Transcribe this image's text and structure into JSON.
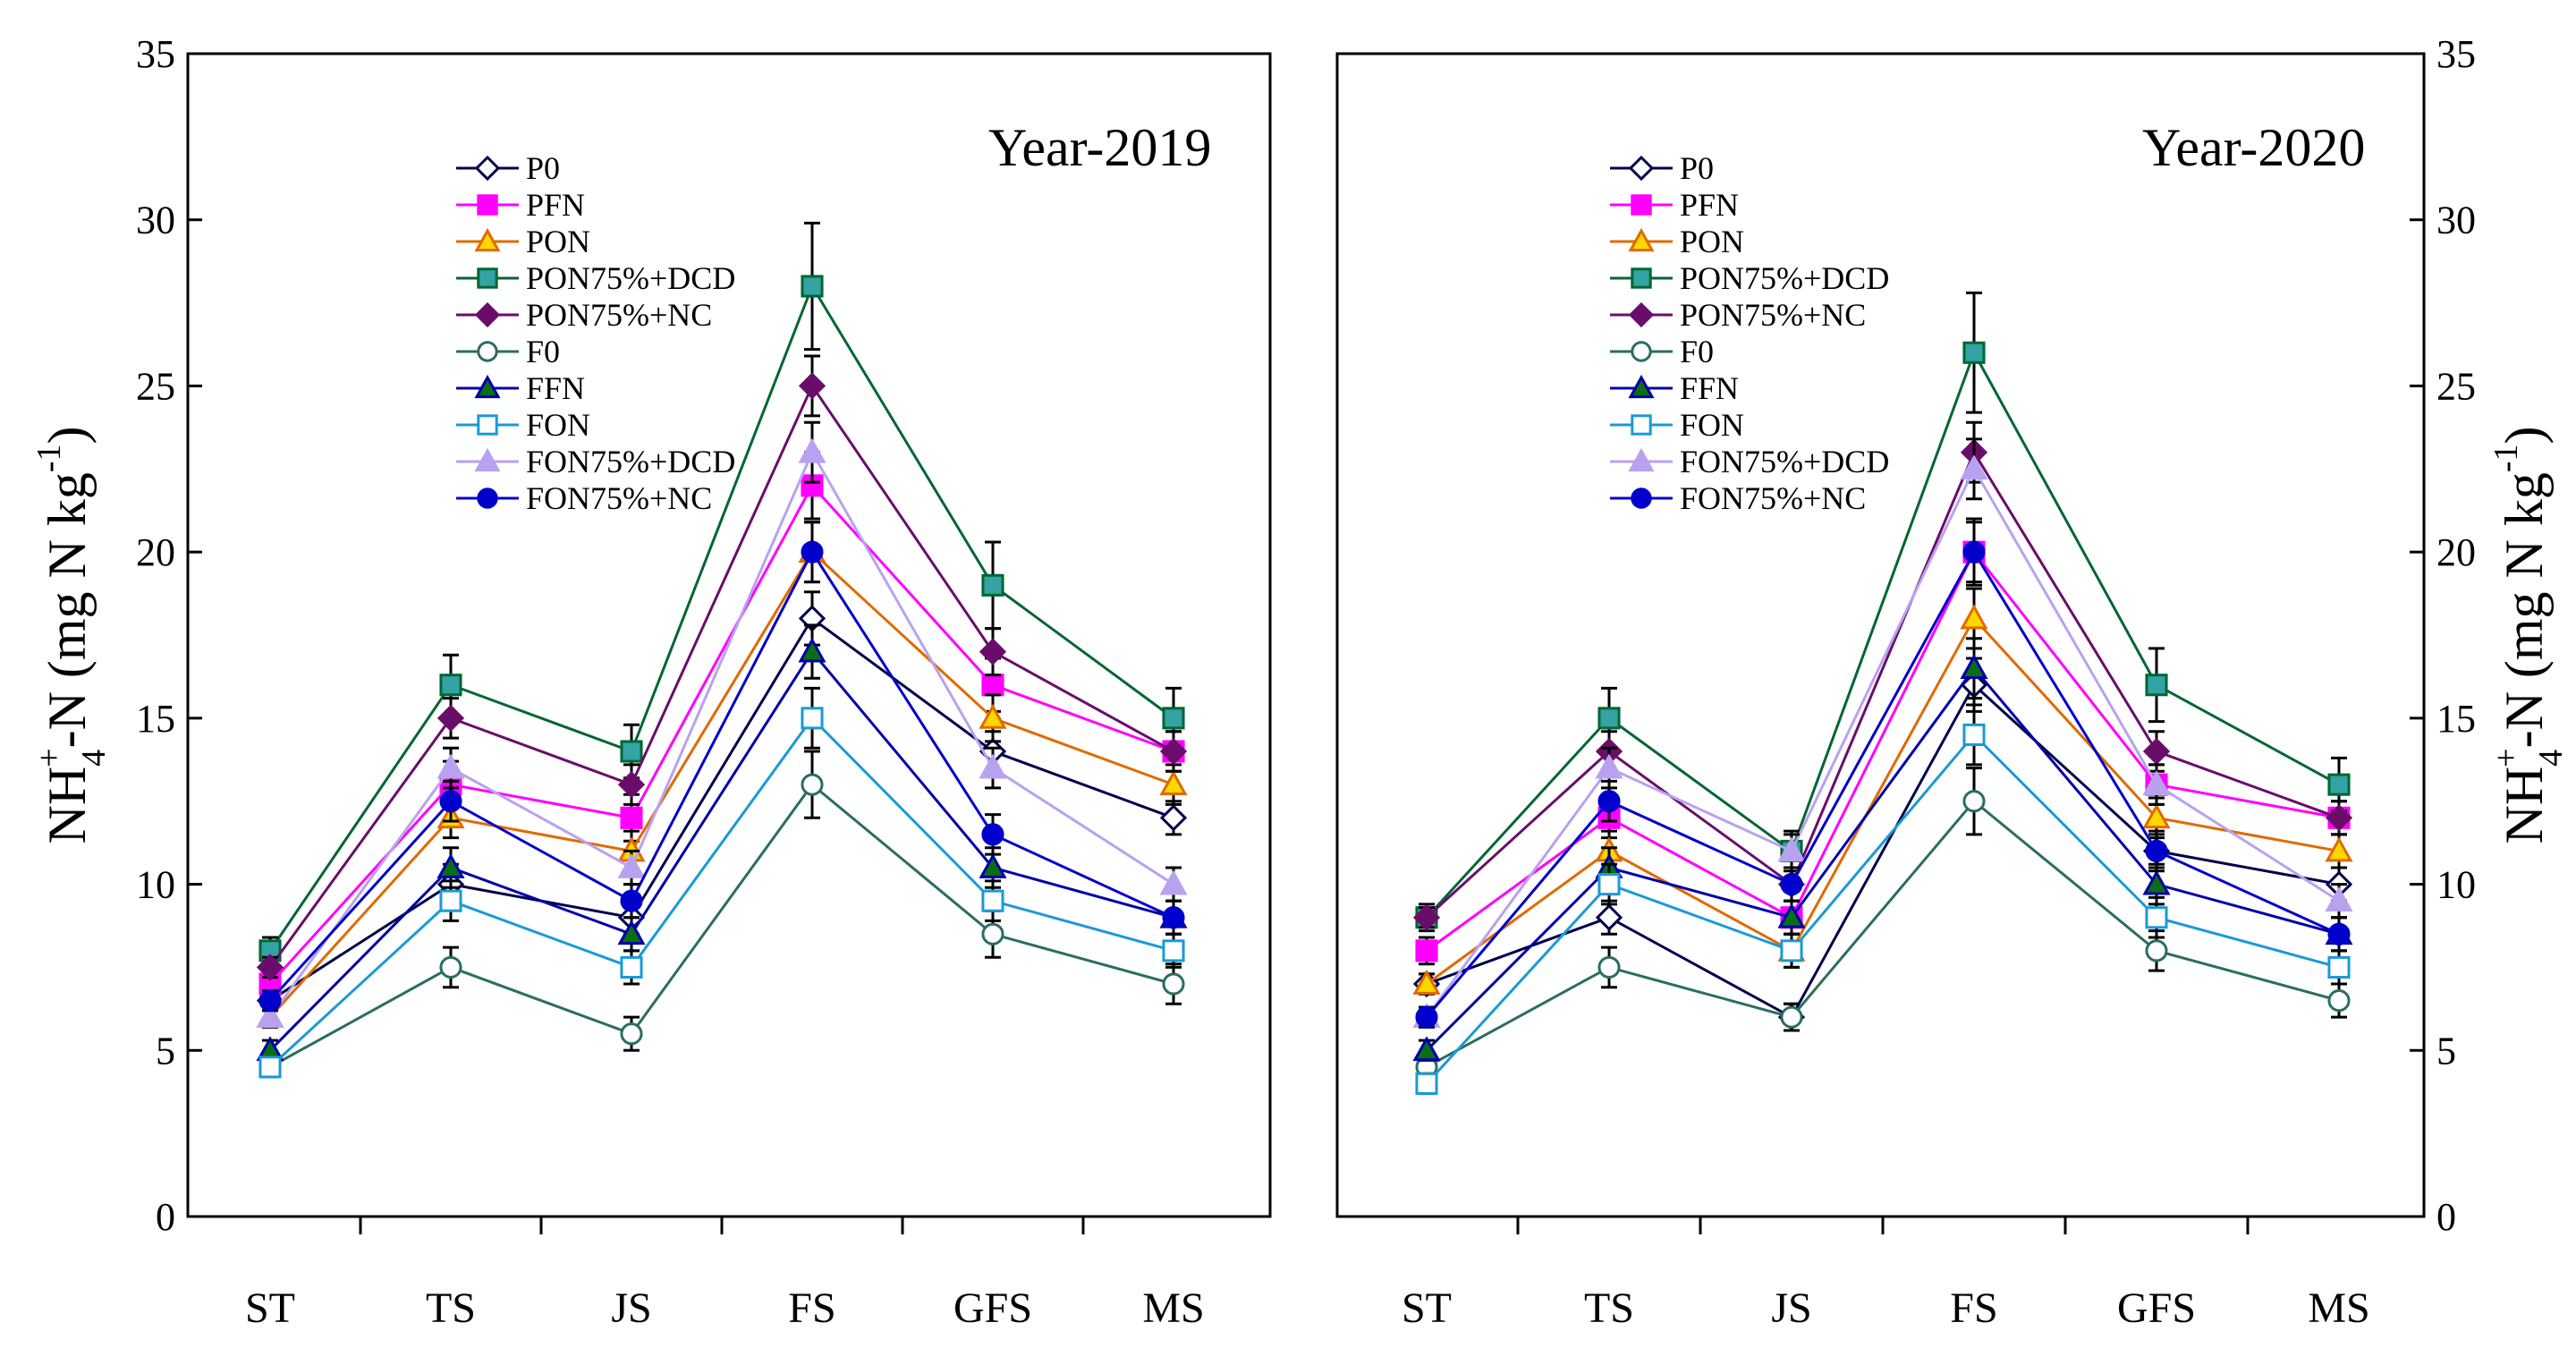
{
  "figure": {
    "ylabel_left": {
      "main": "NH",
      "sub": "4",
      "sup1": "+",
      "mid": "-N (mg N kg",
      "sup2": "-1",
      "end": ")"
    },
    "ylabel_right": {
      "main": "NH",
      "sub": "4",
      "sup1": "+",
      "mid": "-N (mg N kg",
      "sup2": "-1",
      "end": ")"
    }
  },
  "series_styles": [
    {
      "name": "P0",
      "color": "#00004d",
      "marker": "diamond",
      "fill": "#ffffff"
    },
    {
      "name": "PFN",
      "color": "#ff00ff",
      "marker": "square",
      "fill": "#ff00ff"
    },
    {
      "name": "PON",
      "color": "#e06a00",
      "marker": "triangle",
      "fill": "#ffd700"
    },
    {
      "name": "PON75%+DCD",
      "color": "#006633",
      "marker": "square",
      "fill": "#33a3a3"
    },
    {
      "name": "PON75%+NC",
      "color": "#6a0d6a",
      "marker": "diamond",
      "fill": "#6a0d6a"
    },
    {
      "name": "F0",
      "color": "#2a6e5e",
      "marker": "circle-open",
      "fill": "#ffffff"
    },
    {
      "name": "FFN",
      "color": "#0000aa",
      "marker": "triangle",
      "fill": "#0a6e14"
    },
    {
      "name": "FON",
      "color": "#1a9ad6",
      "marker": "square-open",
      "fill": "#ffffff"
    },
    {
      "name": "FON75%+DCD",
      "color": "#b8a2f0",
      "marker": "triangle",
      "fill": "#b8a2f0"
    },
    {
      "name": "FON75%+NC",
      "color": "#0000cc",
      "marker": "circle",
      "fill": "#0000cc"
    }
  ],
  "chart_data": [
    {
      "type": "line",
      "title": "Year-2019",
      "xlabel": "",
      "ylabel": "NH4+-N (mg N kg-1)",
      "categories": [
        "ST",
        "TS",
        "JS",
        "FS",
        "GFS",
        "MS"
      ],
      "ylim": [
        0,
        35
      ],
      "yticks": [
        "0",
        "5",
        "10",
        "15",
        "20",
        "25",
        "30",
        "35"
      ],
      "y_axis_side": "left",
      "legend_position": "top-left",
      "series": [
        {
          "name": "P0",
          "values": [
            6.5,
            10.0,
            9.0,
            18.0,
            14.0,
            12.0
          ],
          "errors": [
            0.3,
            0.6,
            0.5,
            0.8,
            0.6,
            0.5
          ]
        },
        {
          "name": "PFN",
          "values": [
            7.0,
            13.0,
            12.0,
            22.0,
            16.0,
            14.0
          ],
          "errors": [
            0.3,
            0.7,
            0.7,
            1.0,
            0.8,
            0.6
          ]
        },
        {
          "name": "PON",
          "values": [
            6.0,
            12.0,
            11.0,
            20.0,
            15.0,
            13.0
          ],
          "errors": [
            0.3,
            0.6,
            0.6,
            0.9,
            0.7,
            0.6
          ]
        },
        {
          "name": "PON75%+DCD",
          "values": [
            8.0,
            16.0,
            14.0,
            28.0,
            19.0,
            15.0
          ],
          "errors": [
            0.4,
            0.9,
            0.8,
            1.9,
            1.3,
            0.9
          ]
        },
        {
          "name": "PON75%+NC",
          "values": [
            7.5,
            15.0,
            13.0,
            25.0,
            17.0,
            14.0
          ],
          "errors": [
            0.3,
            0.6,
            0.6,
            0.9,
            0.7,
            0.6
          ]
        },
        {
          "name": "F0",
          "values": [
            4.5,
            7.5,
            5.5,
            13.0,
            8.5,
            7.0
          ],
          "errors": [
            0.3,
            0.6,
            0.5,
            1.0,
            0.7,
            0.6
          ]
        },
        {
          "name": "FFN",
          "values": [
            5.0,
            10.5,
            8.5,
            17.0,
            10.5,
            9.0
          ],
          "errors": [
            0.3,
            0.6,
            0.5,
            0.8,
            0.6,
            0.5
          ]
        },
        {
          "name": "FON",
          "values": [
            4.5,
            9.5,
            7.5,
            15.0,
            9.5,
            8.0
          ],
          "errors": [
            0.3,
            0.6,
            0.5,
            0.9,
            0.6,
            0.5
          ]
        },
        {
          "name": "FON75%+DCD",
          "values": [
            6.0,
            13.5,
            10.5,
            23.0,
            13.5,
            10.0
          ],
          "errors": [
            0.3,
            0.6,
            0.5,
            0.9,
            0.6,
            0.5
          ]
        },
        {
          "name": "FON75%+NC",
          "values": [
            6.5,
            12.5,
            9.5,
            20.0,
            11.5,
            9.0
          ],
          "errors": [
            0.3,
            0.6,
            0.5,
            0.9,
            0.6,
            0.5
          ]
        }
      ]
    },
    {
      "type": "line",
      "title": "Year-2020",
      "xlabel": "",
      "ylabel": "NH4+-N (mg N kg-1)",
      "categories": [
        "ST",
        "TS",
        "JS",
        "FS",
        "GFS",
        "MS"
      ],
      "ylim": [
        0,
        35
      ],
      "yticks": [
        "0",
        "5",
        "10",
        "15",
        "20",
        "25",
        "30",
        "35"
      ],
      "y_axis_side": "right",
      "legend_position": "top-left",
      "series": [
        {
          "name": "P0",
          "values": [
            7.0,
            9.0,
            6.0,
            16.0,
            11.0,
            10.0
          ],
          "errors": [
            0.3,
            0.5,
            0.4,
            0.8,
            0.5,
            0.5
          ]
        },
        {
          "name": "PFN",
          "values": [
            8.0,
            12.0,
            9.0,
            20.0,
            13.0,
            12.0
          ],
          "errors": [
            0.4,
            0.6,
            0.5,
            1.0,
            0.6,
            0.5
          ]
        },
        {
          "name": "PON",
          "values": [
            7.0,
            11.0,
            8.0,
            18.0,
            12.0,
            11.0
          ],
          "errors": [
            0.3,
            0.6,
            0.5,
            0.9,
            0.6,
            0.5
          ]
        },
        {
          "name": "PON75%+DCD",
          "values": [
            9.0,
            15.0,
            11.0,
            26.0,
            16.0,
            13.0
          ],
          "errors": [
            0.4,
            0.9,
            0.6,
            1.8,
            1.1,
            0.8
          ]
        },
        {
          "name": "PON75%+NC",
          "values": [
            9.0,
            14.0,
            10.0,
            23.0,
            14.0,
            12.0
          ],
          "errors": [
            0.3,
            0.6,
            0.5,
            0.9,
            0.6,
            0.5
          ]
        },
        {
          "name": "F0",
          "values": [
            4.5,
            7.5,
            6.0,
            12.5,
            8.0,
            6.5
          ],
          "errors": [
            0.3,
            0.6,
            0.4,
            1.0,
            0.6,
            0.5
          ]
        },
        {
          "name": "FFN",
          "values": [
            5.0,
            10.5,
            9.0,
            16.5,
            10.0,
            8.5
          ],
          "errors": [
            0.3,
            0.6,
            0.5,
            0.9,
            0.6,
            0.5
          ]
        },
        {
          "name": "FON",
          "values": [
            4.0,
            10.0,
            8.0,
            14.5,
            9.0,
            7.5
          ],
          "errors": [
            0.3,
            0.6,
            0.5,
            0.9,
            0.6,
            0.5
          ]
        },
        {
          "name": "FON75%+DCD",
          "values": [
            6.0,
            13.5,
            11.0,
            22.5,
            13.0,
            9.5
          ],
          "errors": [
            0.3,
            0.6,
            0.5,
            0.9,
            0.6,
            0.5
          ]
        },
        {
          "name": "FON75%+NC",
          "values": [
            6.0,
            12.5,
            10.0,
            20.0,
            11.0,
            8.5
          ],
          "errors": [
            0.3,
            0.6,
            0.5,
            0.9,
            0.6,
            0.5
          ]
        }
      ]
    }
  ]
}
